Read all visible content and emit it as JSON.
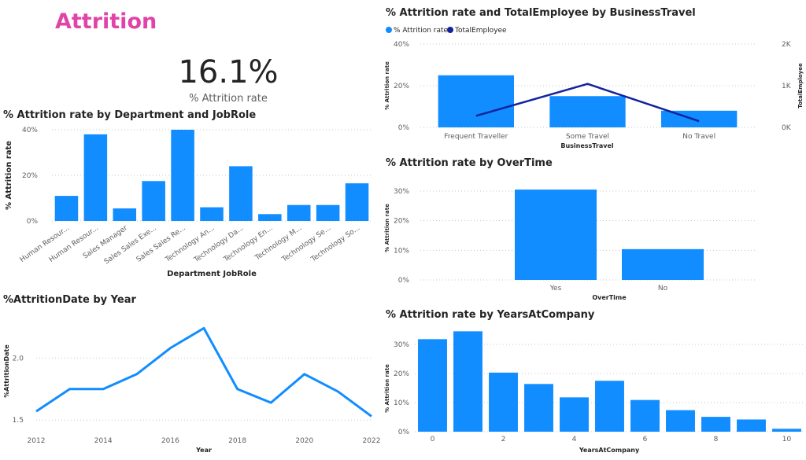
{
  "header": {
    "title": "Attrition"
  },
  "kpi": {
    "value": "16.1%",
    "label": "% Attrition rate"
  },
  "colors": {
    "bar": "#118dff",
    "line_dark": "#12239e",
    "grid": "#c8c6c4",
    "title_accent": "#e044a7"
  },
  "chart_data": [
    {
      "id": "dept_jobrole",
      "type": "bar",
      "title": "% Attrition rate by Department and JobRole",
      "xlabel": "Department JobRole",
      "ylabel": "% Attrition rate",
      "categories": [
        "Human Resour...",
        "Human Resour...",
        "Sales Manager",
        "Sales Sales Exe...",
        "Sales Sales Re...",
        "Technology An...",
        "Technology Da...",
        "Technology En...",
        "Technology M...",
        "Technology Se...",
        "Technology So..."
      ],
      "values": [
        11,
        38,
        5.5,
        17.5,
        40,
        6,
        24,
        3,
        7,
        7,
        16.5
      ],
      "ylim": [
        0,
        40
      ],
      "yticks": [
        "0%",
        "20%",
        "40%"
      ],
      "ytick_values": [
        0,
        20,
        40
      ],
      "grid": true
    },
    {
      "id": "attrition_by_year",
      "type": "line",
      "title": "%AttritionDate by Year",
      "xlabel": "Year",
      "ylabel": "%AttritionDate",
      "x": [
        2012,
        2013,
        2014,
        2015,
        2016,
        2017,
        2018,
        2019,
        2020,
        2021,
        2022
      ],
      "values": [
        1.57,
        1.75,
        1.75,
        1.87,
        2.08,
        2.24,
        1.75,
        1.64,
        1.87,
        1.73,
        1.53
      ],
      "ylim": [
        1.4,
        2.35
      ],
      "yticks": [
        "1.5",
        "2.0"
      ],
      "ytick_values": [
        1.5,
        2.0
      ],
      "xticks": [
        "2012",
        "2014",
        "2016",
        "2018",
        "2020",
        "2022"
      ],
      "xtick_values": [
        2012,
        2014,
        2016,
        2018,
        2020,
        2022
      ],
      "grid": true
    },
    {
      "id": "business_travel",
      "type": "bar",
      "title": "% Attrition rate and TotalEmployee by BusinessTravel",
      "xlabel": "BusinessTravel",
      "ylabel": "% Attrition rate",
      "y2label": "TotalEmployee",
      "categories": [
        "Frequent Traveller",
        "Some Travel",
        "No Travel"
      ],
      "series": [
        {
          "name": "% Attrition rate",
          "values": [
            25,
            15,
            8
          ],
          "type": "bar"
        },
        {
          "name": "TotalEmployee",
          "values": [
            277,
            1043,
            150
          ],
          "type": "line"
        }
      ],
      "ylim": [
        0,
        40
      ],
      "y2lim": [
        0,
        2000
      ],
      "yticks": [
        "0%",
        "20%",
        "40%"
      ],
      "ytick_values": [
        0,
        20,
        40
      ],
      "y2ticks": [
        "0K",
        "1K",
        "2K"
      ],
      "y2tick_values": [
        0,
        1000,
        2000
      ],
      "legend": "top-left",
      "grid": true
    },
    {
      "id": "overtime",
      "type": "bar",
      "title": "% Attrition rate by OverTime",
      "xlabel": "OverTime",
      "ylabel": "% Attrition rate",
      "categories": [
        "Yes",
        "No"
      ],
      "values": [
        30.5,
        10.4
      ],
      "ylim": [
        0,
        30
      ],
      "yticks": [
        "0%",
        "10%",
        "20%",
        "30%"
      ],
      "ytick_values": [
        0,
        10,
        20,
        30
      ],
      "grid": true
    },
    {
      "id": "years_at_company",
      "type": "bar",
      "title": "% Attrition rate by YearsAtCompany",
      "xlabel": "YearsAtCompany",
      "ylabel": "% Attrition rate",
      "x": [
        0,
        1,
        2,
        3,
        4,
        5,
        6,
        7,
        8,
        9,
        10
      ],
      "values": [
        31.8,
        34.5,
        20.3,
        16.4,
        11.8,
        17.5,
        10.9,
        7.4,
        5.1,
        4.2,
        1.0
      ],
      "ylim": [
        0,
        30
      ],
      "yticks": [
        "0%",
        "10%",
        "20%",
        "30%"
      ],
      "ytick_values": [
        0,
        10,
        20,
        30
      ],
      "xticks": [
        "0",
        "2",
        "4",
        "6",
        "8",
        "10"
      ],
      "xtick_values": [
        0,
        2,
        4,
        6,
        8,
        10
      ],
      "grid": true
    }
  ]
}
